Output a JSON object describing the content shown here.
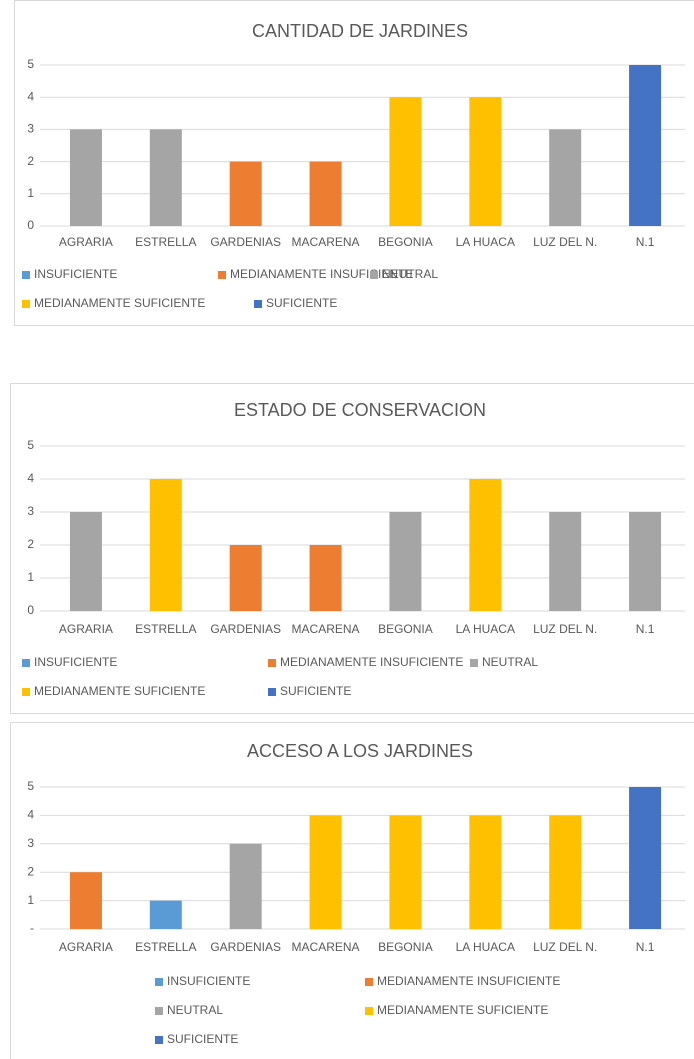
{
  "chart_data": [
    {
      "type": "bar",
      "title": "CANTIDAD DE JARDINES",
      "categories": [
        "AGRARIA",
        "ESTRELLA",
        "GARDENIAS",
        "MACARENA",
        "BEGONIA",
        "LA HUACA",
        "LUZ DEL N.",
        "N.1"
      ],
      "series": [
        {
          "name": "INSUFICIENTE",
          "color": "#5b9bd5",
          "values": [
            null,
            null,
            null,
            null,
            null,
            null,
            null,
            null
          ]
        },
        {
          "name": "MEDIANAMENTE INSUFICIENTE",
          "color": "#ed7d31",
          "values": [
            null,
            null,
            2,
            2,
            null,
            null,
            null,
            null
          ]
        },
        {
          "name": "NEUTRAL",
          "color": "#a5a5a5",
          "values": [
            3,
            3,
            null,
            null,
            null,
            null,
            3,
            null
          ]
        },
        {
          "name": "MEDIANAMENTE SUFICIENTE",
          "color": "#ffc000",
          "values": [
            null,
            null,
            null,
            null,
            4,
            4,
            null,
            null
          ]
        },
        {
          "name": "SUFICIENTE",
          "color": "#4472c4",
          "values": [
            null,
            null,
            null,
            null,
            null,
            null,
            null,
            5
          ]
        }
      ],
      "ylim": [
        0,
        5
      ],
      "yticks": [
        0,
        1,
        2,
        3,
        4,
        5
      ],
      "grid": true,
      "legend": "bottom"
    },
    {
      "type": "bar",
      "title": "ESTADO DE CONSERVACION",
      "categories": [
        "AGRARIA",
        "ESTRELLA",
        "GARDENIAS",
        "MACARENA",
        "BEGONIA",
        "LA HUACA",
        "LUZ DEL N.",
        "N.1"
      ],
      "series": [
        {
          "name": "INSUFICIENTE",
          "color": "#5b9bd5",
          "values": [
            null,
            null,
            null,
            null,
            null,
            null,
            null,
            null
          ]
        },
        {
          "name": "MEDIANAMENTE INSUFICIENTE",
          "color": "#ed7d31",
          "values": [
            null,
            null,
            2,
            2,
            null,
            null,
            null,
            null
          ]
        },
        {
          "name": "NEUTRAL",
          "color": "#a5a5a5",
          "values": [
            3,
            null,
            null,
            null,
            3,
            null,
            3,
            3
          ]
        },
        {
          "name": "MEDIANAMENTE SUFICIENTE",
          "color": "#ffc000",
          "values": [
            null,
            4,
            null,
            null,
            null,
            4,
            null,
            null
          ]
        },
        {
          "name": "SUFICIENTE",
          "color": "#4472c4",
          "values": [
            null,
            null,
            null,
            null,
            null,
            null,
            null,
            null
          ]
        }
      ],
      "ylim": [
        0,
        5
      ],
      "yticks": [
        0,
        1,
        2,
        3,
        4,
        5
      ],
      "grid": true,
      "legend": "bottom"
    },
    {
      "type": "bar",
      "title": "ACCESO A LOS JARDINES",
      "categories": [
        "AGRARIA",
        "ESTRELLA",
        "GARDENIAS",
        "MACARENA",
        "BEGONIA",
        "LA HUACA",
        "LUZ DEL N.",
        "N.1"
      ],
      "series": [
        {
          "name": "INSUFICIENTE",
          "color": "#5b9bd5",
          "values": [
            null,
            1,
            null,
            null,
            null,
            null,
            null,
            null
          ]
        },
        {
          "name": "MEDIANAMENTE INSUFICIENTE",
          "color": "#ed7d31",
          "values": [
            2,
            null,
            null,
            null,
            null,
            null,
            null,
            null
          ]
        },
        {
          "name": "NEUTRAL",
          "color": "#a5a5a5",
          "values": [
            null,
            null,
            3,
            null,
            null,
            null,
            null,
            null
          ]
        },
        {
          "name": "MEDIANAMENTE SUFICIENTE",
          "color": "#ffc000",
          "values": [
            null,
            null,
            null,
            4,
            4,
            4,
            4,
            null
          ]
        },
        {
          "name": "SUFICIENTE",
          "color": "#4472c4",
          "values": [
            null,
            null,
            null,
            null,
            null,
            null,
            null,
            5
          ]
        }
      ],
      "ylim": [
        0,
        5
      ],
      "yticks": [
        {
          "value": 0,
          "label": "-"
        },
        1,
        2,
        3,
        4,
        5
      ],
      "grid": true,
      "legend": "bottom"
    }
  ]
}
